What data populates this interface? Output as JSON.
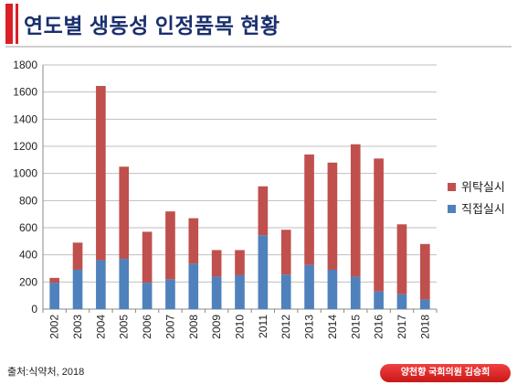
{
  "page": {
    "title": "연도별 생동성 인정품목 현황",
    "source": "출처:식약처, 2018",
    "badge": "양천향 국회의원 김승희"
  },
  "colors": {
    "accent": "#d92027",
    "title": "#1a2f6e",
    "red_series": "#c0504d",
    "blue_series": "#4f81bd"
  },
  "chart_data": {
    "type": "bar",
    "stacked": true,
    "categories": [
      "2002",
      "2003",
      "2004",
      "2005",
      "2006",
      "2007",
      "2008",
      "2009",
      "2010",
      "2011",
      "2012",
      "2013",
      "2014",
      "2015",
      "2016",
      "2017",
      "2018"
    ],
    "series": [
      {
        "name": "직접실시",
        "color": "#4f81bd",
        "values": [
          195,
          290,
          360,
          370,
          195,
          220,
          335,
          240,
          250,
          545,
          255,
          325,
          290,
          240,
          130,
          110,
          70
        ]
      },
      {
        "name": "위탁실시",
        "color": "#c0504d",
        "values": [
          35,
          200,
          1285,
          680,
          375,
          500,
          335,
          195,
          185,
          360,
          330,
          815,
          790,
          975,
          980,
          515,
          410
        ]
      }
    ],
    "legend_order": [
      "위탁실시",
      "직접실시"
    ],
    "ylim": [
      0,
      1800
    ],
    "yticks": [
      0,
      200,
      400,
      600,
      800,
      1000,
      1200,
      1400,
      1600,
      1800
    ],
    "grid": true,
    "legend": "right",
    "xlabel": "",
    "ylabel": ""
  }
}
